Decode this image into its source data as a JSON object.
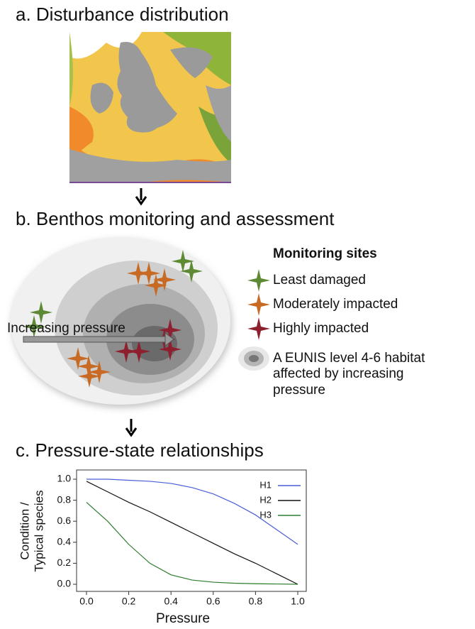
{
  "panel_a": {
    "title": "a. Disturbance distribution"
  },
  "panel_b": {
    "title": "b. Benthos monitoring and assessment",
    "arrow_label": "Increasing pressure",
    "legend_title": "Monitoring sites",
    "legend": [
      "Least damaged",
      "Moderately impacted",
      "Highly impacted"
    ],
    "habitat_label": [
      "A EUNIS level 4-6 habitat",
      "affected by increasing",
      "pressure"
    ]
  },
  "chart_data": {
    "type": "line",
    "title": "c. Pressure-state relationships",
    "xlabel": "Pressure",
    "ylabel": [
      "Condition /",
      "Typical species"
    ],
    "x": [
      0,
      0.1,
      0.2,
      0.3,
      0.4,
      0.5,
      0.6,
      0.7,
      0.8,
      0.9,
      1.0
    ],
    "series": [
      {
        "name": "H1",
        "color": "#4a5fd6",
        "values": [
          1.0,
          1.0,
          0.99,
          0.98,
          0.96,
          0.92,
          0.86,
          0.77,
          0.66,
          0.52,
          0.38
        ]
      },
      {
        "name": "H2",
        "color": "#111111",
        "values": [
          0.98,
          0.88,
          0.78,
          0.69,
          0.59,
          0.49,
          0.39,
          0.29,
          0.2,
          0.1,
          0.0
        ]
      },
      {
        "name": "H3",
        "color": "#2e7d2e",
        "values": [
          0.78,
          0.6,
          0.38,
          0.2,
          0.09,
          0.04,
          0.02,
          0.01,
          0.005,
          0.003,
          0.0
        ]
      }
    ],
    "xlim": [
      0,
      1
    ],
    "ylim": [
      0,
      1
    ],
    "xticks": [
      {
        "value": 0,
        "label": "0.0"
      },
      0.2,
      0.4,
      0.6,
      0.8,
      {
        "value": 1,
        "label": "1.0"
      }
    ],
    "yticks": [
      {
        "value": 0,
        "label": "0.0"
      },
      0.2,
      0.4,
      0.6,
      0.8,
      {
        "value": 1,
        "label": "1.0"
      }
    ],
    "legend_position": "upper right"
  }
}
